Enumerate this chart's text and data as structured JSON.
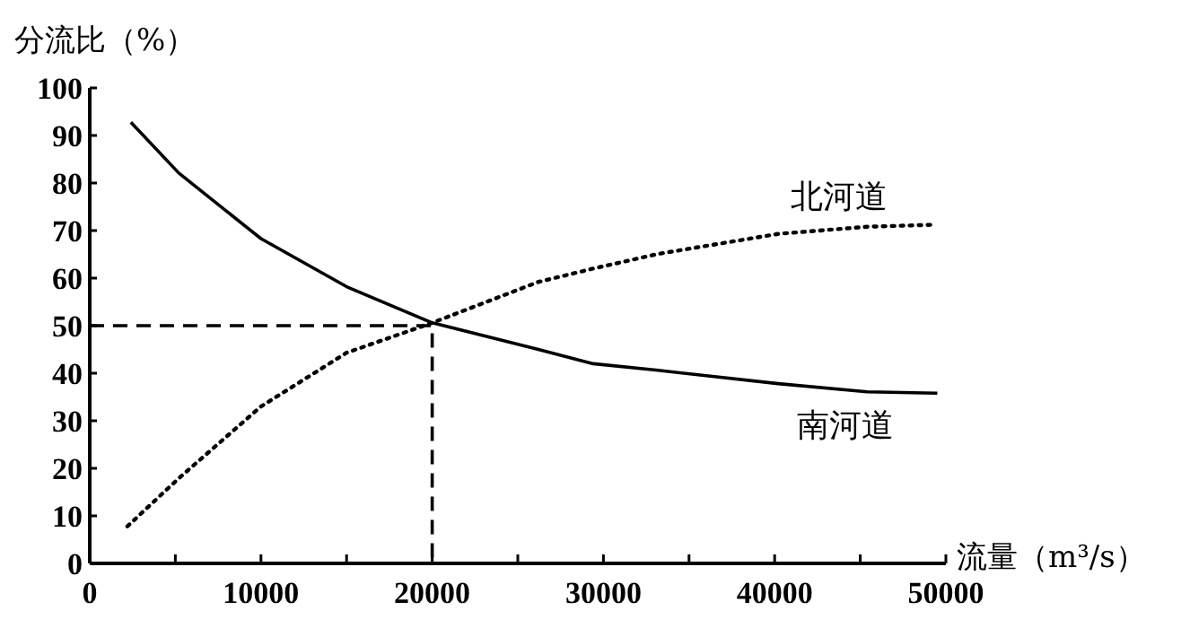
{
  "chart_data": {
    "type": "line",
    "ylabel": "分流比（%）",
    "xlabel": "流量（m³/s）",
    "xlim": [
      0,
      50000
    ],
    "ylim": [
      0,
      100
    ],
    "xticks": [
      0,
      {
        "value": 5000,
        "label": null
      },
      10000,
      {
        "value": 15000,
        "label": null
      },
      20000,
      {
        "value": 25000,
        "label": null
      },
      30000,
      {
        "value": 35000,
        "label": null
      },
      40000,
      {
        "value": 45000,
        "label": null
      },
      50000
    ],
    "yticks": [
      0,
      10,
      20,
      30,
      40,
      50,
      60,
      70,
      80,
      90,
      100
    ],
    "series": [
      {
        "name": "南河道",
        "color": "#000000",
        "line_style": "solid",
        "x": [
          2400,
          5200,
          10000,
          15000,
          20000,
          26200,
          29400,
          33200,
          40200,
          45400,
          49500
        ],
        "values": [
          92.8,
          82.1,
          68.3,
          58.2,
          50.6,
          45,
          42,
          40.6,
          37.8,
          36.1,
          35.8
        ]
      },
      {
        "name": "北河道",
        "color": "#000000",
        "line_style": "dotted",
        "x": [
          2200,
          5200,
          10000,
          15000,
          20000,
          26200,
          29400,
          33200,
          40200,
          45400,
          49100
        ],
        "values": [
          7.8,
          17.9,
          33,
          44.3,
          50.6,
          59.2,
          62,
          65.1,
          69.3,
          70.8,
          71.2
        ]
      },
      {
        "color": "#000000",
        "line_style": "dashed",
        "x": [
          0,
          20000,
          20000
        ],
        "values": [
          50,
          50,
          0
        ]
      }
    ]
  }
}
